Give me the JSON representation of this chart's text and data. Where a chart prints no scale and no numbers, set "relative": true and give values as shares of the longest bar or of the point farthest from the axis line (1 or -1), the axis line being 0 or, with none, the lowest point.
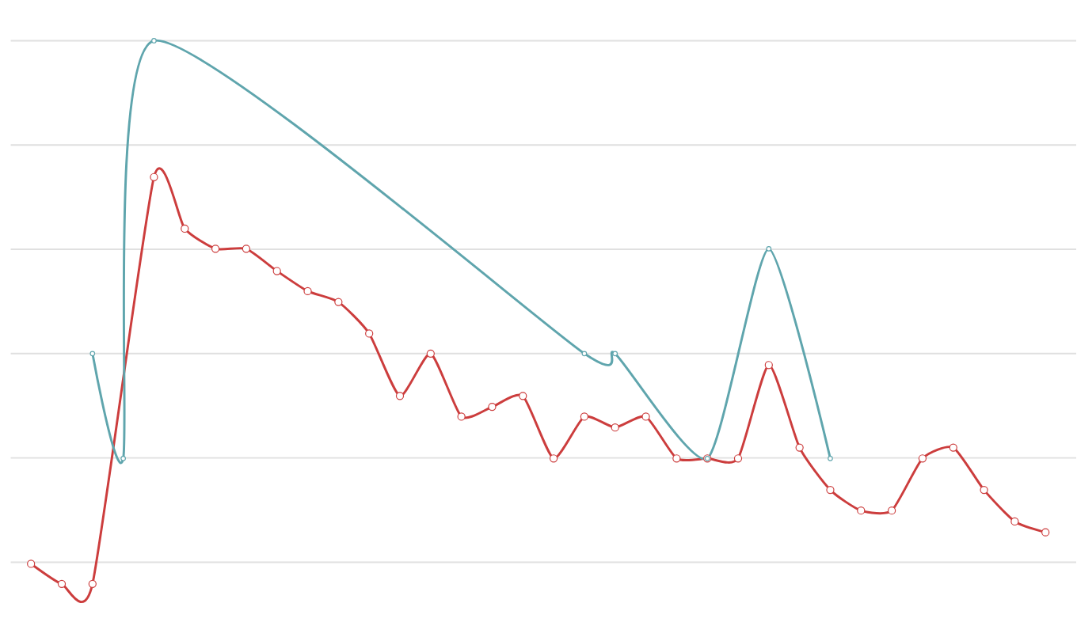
{
  "chart_data": {
    "type": "line",
    "relative": true,
    "grid": "y",
    "marker": "circle",
    "line_style": "solid",
    "categories": [
      null,
      null,
      null,
      null,
      null,
      null,
      null,
      null,
      null,
      null,
      null,
      null,
      null,
      null,
      null,
      null,
      null,
      null,
      null,
      null,
      null,
      null,
      null,
      null,
      null,
      null,
      null,
      null,
      null,
      null,
      null,
      null,
      null,
      null
    ],
    "series": [
      {
        "color": "#cc3d3d",
        "values": [
          0.037,
          0,
          0,
          null,
          0.749,
          0.654,
          0.617,
          0.617,
          0.576,
          0.539,
          0.519,
          0.461,
          0.346,
          0.424,
          0.308,
          0.326,
          0.346,
          0.231,
          0.308,
          0.288,
          0.308,
          0.231,
          0.231,
          0.231,
          0.403,
          0.251,
          0.173,
          0.135,
          0.135,
          0.231,
          0.251,
          0.173,
          0.115,
          0.095
        ]
      },
      {
        "color": "#5fa5ad",
        "values": [
          null,
          null,
          0.424,
          0.231,
          1,
          null,
          null,
          null,
          null,
          null,
          null,
          null,
          null,
          null,
          null,
          null,
          null,
          null,
          0.424,
          0.424,
          null,
          null,
          0.231,
          null,
          0.617,
          null,
          0.231,
          null,
          null,
          null,
          null,
          null,
          null,
          null
        ]
      }
    ]
  }
}
